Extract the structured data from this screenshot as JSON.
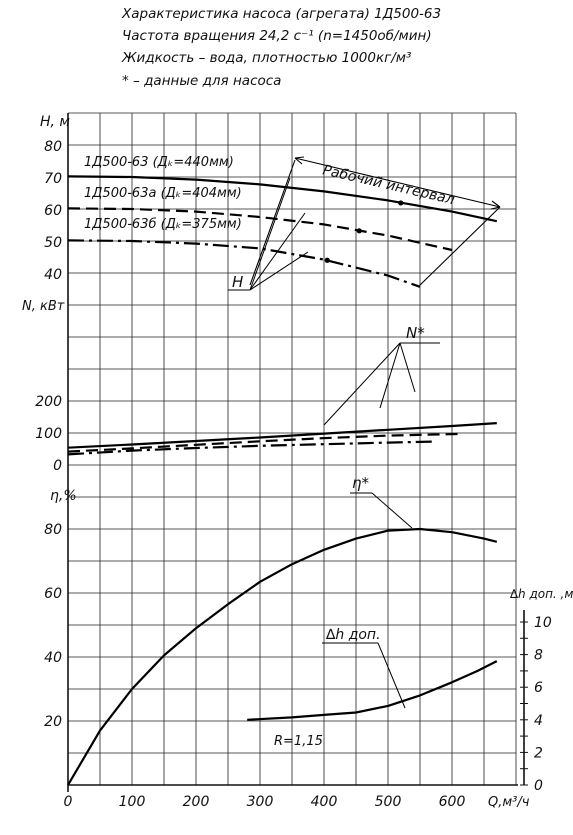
{
  "header": {
    "lines": [
      "Характеристика насоса (агрегата) 1Д500-63",
      "Частота вращения 24,2 с⁻¹ (n=1450об/мин)",
      "Жидкость – вода, плотностью 1000кг/м³",
      "* – данные для насоса"
    ]
  },
  "chart_data": [
    {
      "id": "head",
      "type": "line",
      "ylabel": "H, м",
      "yticks": [
        "40",
        "50",
        "60",
        "70",
        "80"
      ],
      "ylim": [
        35,
        85
      ],
      "series": [
        {
          "name": "1Д500-63 (Дₖ=440мм)",
          "style": "solid",
          "x": [
            0,
            100,
            200,
            300,
            400,
            500,
            600,
            670
          ],
          "y": [
            70.5,
            70.3,
            69.5,
            68,
            65.8,
            63,
            59.5,
            56.5
          ]
        },
        {
          "name": "1Д500-63а (Дₖ=404мм)",
          "style": "dashed",
          "x": [
            0,
            100,
            200,
            300,
            400,
            500,
            600
          ],
          "y": [
            60.5,
            60.3,
            59.5,
            57.8,
            55.5,
            52,
            47.5
          ]
        },
        {
          "name": "1Д500-63б (Дₖ=375мм)",
          "style": "dashdot",
          "x": [
            0,
            100,
            200,
            300,
            400,
            500,
            550
          ],
          "y": [
            50.5,
            50.3,
            49.5,
            48,
            44.5,
            39.5,
            36
          ]
        }
      ],
      "markers": [
        {
          "x": 520,
          "y": 62.2
        },
        {
          "x": 455,
          "y": 53.5
        },
        {
          "x": 405,
          "y": 44.3
        }
      ],
      "annotations": {
        "working_range": "Рабочий интервал",
        "curve_label": "H"
      }
    },
    {
      "id": "power",
      "type": "line",
      "ylabel": "N, кВт",
      "yticks": [
        "0",
        "100",
        "200"
      ],
      "ylim": [
        0,
        200
      ],
      "series": [
        {
          "style": "solid",
          "x": [
            0,
            100,
            200,
            300,
            400,
            500,
            600,
            670
          ],
          "y": [
            54,
            64,
            75,
            86,
            98,
            110,
            122,
            131
          ]
        },
        {
          "style": "dashed",
          "x": [
            0,
            100,
            200,
            300,
            400,
            500,
            610
          ],
          "y": [
            42,
            52,
            63,
            74,
            84,
            92,
            97
          ]
        },
        {
          "style": "dashdot",
          "x": [
            0,
            100,
            200,
            300,
            400,
            500,
            570
          ],
          "y": [
            33,
            45,
            53,
            60,
            65,
            70,
            73
          ]
        }
      ],
      "annotations": {
        "curve_label": "N*"
      }
    },
    {
      "id": "efficiency",
      "type": "line",
      "ylabel": "η,%",
      "yticks": [
        "20",
        "40",
        "60",
        "80"
      ],
      "ylim": [
        0,
        100
      ],
      "xlabel": "Q,м³/ч",
      "xticks": [
        "0",
        "100",
        "200",
        "300",
        "400",
        "500",
        "600"
      ],
      "xlim": [
        0,
        700
      ],
      "series": [
        {
          "name": "η*",
          "style": "solid",
          "x": [
            0,
            50,
            100,
            150,
            200,
            250,
            300,
            350,
            400,
            450,
            500,
            550,
            600,
            650,
            670
          ],
          "y": [
            0,
            17,
            30,
            40.5,
            49,
            56.5,
            63.5,
            69,
            73.5,
            77,
            79.5,
            80,
            79,
            77,
            76
          ]
        }
      ],
      "annotations": {
        "curve_label": "η*"
      }
    },
    {
      "id": "npsh",
      "type": "line",
      "ylabel": "∆h доп. ,м",
      "yticks": [
        "0",
        "2",
        "4",
        "6",
        "8",
        "10"
      ],
      "ylim": [
        0,
        10
      ],
      "series": [
        {
          "name": "∆h доп.",
          "style": "solid",
          "x": [
            280,
            350,
            400,
            450,
            500,
            550,
            600,
            640,
            670
          ],
          "y": [
            4.0,
            4.15,
            4.3,
            4.45,
            4.85,
            5.5,
            6.3,
            7.0,
            7.6
          ]
        }
      ],
      "annotations": {
        "curve_label": "∆h доп.",
        "r_label": "R=1,15"
      }
    }
  ]
}
